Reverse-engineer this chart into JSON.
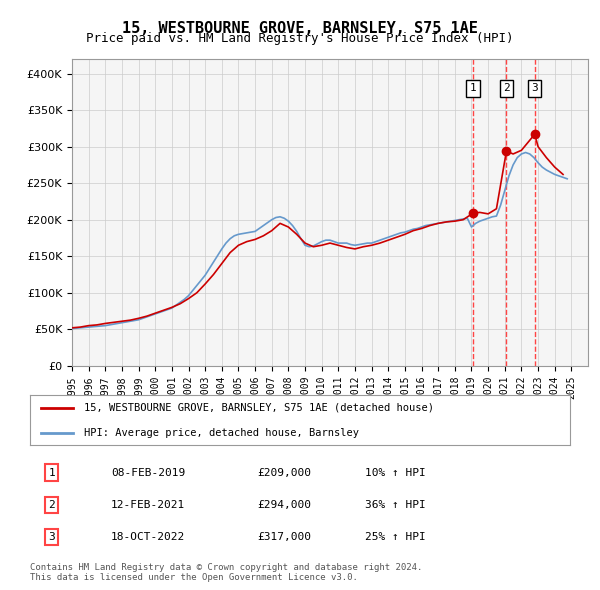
{
  "title": "15, WESTBOURNE GROVE, BARNSLEY, S75 1AE",
  "subtitle": "Price paid vs. HM Land Registry's House Price Index (HPI)",
  "legend_line1": "15, WESTBOURNE GROVE, BARNSLEY, S75 1AE (detached house)",
  "legend_line2": "HPI: Average price, detached house, Barnsley",
  "footnote1": "Contains HM Land Registry data © Crown copyright and database right 2024.",
  "footnote2": "This data is licensed under the Open Government Licence v3.0.",
  "transactions": [
    {
      "num": 1,
      "date": "08-FEB-2019",
      "price": "£209,000",
      "change": "10% ↑ HPI",
      "year": 2019.1
    },
    {
      "num": 2,
      "date": "12-FEB-2021",
      "price": "£294,000",
      "change": "36% ↑ HPI",
      "year": 2021.1
    },
    {
      "num": 3,
      "date": "18-OCT-2022",
      "price": "£317,000",
      "change": "25% ↑ HPI",
      "year": 2022.8
    }
  ],
  "hpi_color": "#6699cc",
  "price_color": "#cc0000",
  "vline_color": "#ff4444",
  "background_color": "#dce9f5",
  "plot_bg": "#f5f5f5",
  "ylim": [
    0,
    420000
  ],
  "xlim_start": 1995,
  "xlim_end": 2026,
  "hpi_data": {
    "years": [
      1995.0,
      1995.25,
      1995.5,
      1995.75,
      1996.0,
      1996.25,
      1996.5,
      1996.75,
      1997.0,
      1997.25,
      1997.5,
      1997.75,
      1998.0,
      1998.25,
      1998.5,
      1998.75,
      1999.0,
      1999.25,
      1999.5,
      1999.75,
      2000.0,
      2000.25,
      2000.5,
      2000.75,
      2001.0,
      2001.25,
      2001.5,
      2001.75,
      2002.0,
      2002.25,
      2002.5,
      2002.75,
      2003.0,
      2003.25,
      2003.5,
      2003.75,
      2004.0,
      2004.25,
      2004.5,
      2004.75,
      2005.0,
      2005.25,
      2005.5,
      2005.75,
      2006.0,
      2006.25,
      2006.5,
      2006.75,
      2007.0,
      2007.25,
      2007.5,
      2007.75,
      2008.0,
      2008.25,
      2008.5,
      2008.75,
      2009.0,
      2009.25,
      2009.5,
      2009.75,
      2010.0,
      2010.25,
      2010.5,
      2010.75,
      2011.0,
      2011.25,
      2011.5,
      2011.75,
      2012.0,
      2012.25,
      2012.5,
      2012.75,
      2013.0,
      2013.25,
      2013.5,
      2013.75,
      2014.0,
      2014.25,
      2014.5,
      2014.75,
      2015.0,
      2015.25,
      2015.5,
      2015.75,
      2016.0,
      2016.25,
      2016.5,
      2016.75,
      2017.0,
      2017.25,
      2017.5,
      2017.75,
      2018.0,
      2018.25,
      2018.5,
      2018.75,
      2019.0,
      2019.25,
      2019.5,
      2019.75,
      2020.0,
      2020.25,
      2020.5,
      2020.75,
      2021.0,
      2021.25,
      2021.5,
      2021.75,
      2022.0,
      2022.25,
      2022.5,
      2022.75,
      2023.0,
      2023.25,
      2023.5,
      2023.75,
      2024.0,
      2024.25,
      2024.5,
      2024.75
    ],
    "values": [
      51000,
      51500,
      52000,
      52500,
      53000,
      53500,
      54000,
      54500,
      55000,
      56000,
      57000,
      58000,
      59000,
      60000,
      61000,
      62000,
      63000,
      65000,
      67000,
      69000,
      71000,
      73000,
      75000,
      77000,
      79000,
      83000,
      87000,
      91000,
      96000,
      103000,
      110000,
      117000,
      124000,
      133000,
      142000,
      151000,
      160000,
      168000,
      174000,
      178000,
      180000,
      181000,
      182000,
      183000,
      184000,
      188000,
      192000,
      196000,
      200000,
      203000,
      204000,
      202000,
      198000,
      192000,
      184000,
      174000,
      165000,
      163000,
      164000,
      167000,
      170000,
      172000,
      172000,
      170000,
      168000,
      168000,
      168000,
      166000,
      165000,
      166000,
      167000,
      168000,
      168000,
      170000,
      172000,
      174000,
      176000,
      178000,
      180000,
      182000,
      183000,
      185000,
      187000,
      188000,
      190000,
      192000,
      193000,
      194000,
      195000,
      196000,
      197000,
      198000,
      199000,
      200000,
      201000,
      202000,
      190000,
      195000,
      198000,
      200000,
      202000,
      204000,
      205000,
      220000,
      240000,
      260000,
      275000,
      285000,
      290000,
      292000,
      290000,
      285000,
      278000,
      272000,
      268000,
      265000,
      262000,
      260000,
      258000,
      256000
    ]
  },
  "price_data": {
    "years": [
      1995.0,
      1995.5,
      1996.0,
      1996.5,
      1997.0,
      1997.5,
      1998.0,
      1998.5,
      1999.0,
      1999.5,
      2000.0,
      2000.5,
      2001.0,
      2001.5,
      2002.0,
      2002.5,
      2003.0,
      2003.5,
      2004.0,
      2004.5,
      2005.0,
      2005.5,
      2006.0,
      2006.5,
      2007.0,
      2007.5,
      2008.0,
      2008.5,
      2009.0,
      2009.5,
      2010.0,
      2010.5,
      2011.0,
      2011.5,
      2012.0,
      2012.5,
      2013.0,
      2013.5,
      2014.0,
      2014.5,
      2015.0,
      2015.5,
      2016.0,
      2016.5,
      2017.0,
      2017.5,
      2018.0,
      2018.5,
      2019.1,
      2019.5,
      2020.0,
      2020.5,
      2021.1,
      2021.5,
      2022.0,
      2022.8,
      2023.0,
      2023.5,
      2024.0,
      2024.5
    ],
    "values": [
      52000,
      53000,
      55000,
      56000,
      58000,
      59500,
      61000,
      62500,
      65000,
      68000,
      72000,
      76000,
      80000,
      85000,
      92000,
      100000,
      112000,
      125000,
      140000,
      155000,
      165000,
      170000,
      173000,
      178000,
      185000,
      195000,
      190000,
      180000,
      168000,
      163000,
      165000,
      168000,
      165000,
      162000,
      160000,
      163000,
      165000,
      168000,
      172000,
      176000,
      180000,
      185000,
      188000,
      192000,
      195000,
      197000,
      198000,
      200000,
      209000,
      210000,
      208000,
      215000,
      294000,
      290000,
      295000,
      317000,
      300000,
      285000,
      272000,
      262000
    ]
  }
}
